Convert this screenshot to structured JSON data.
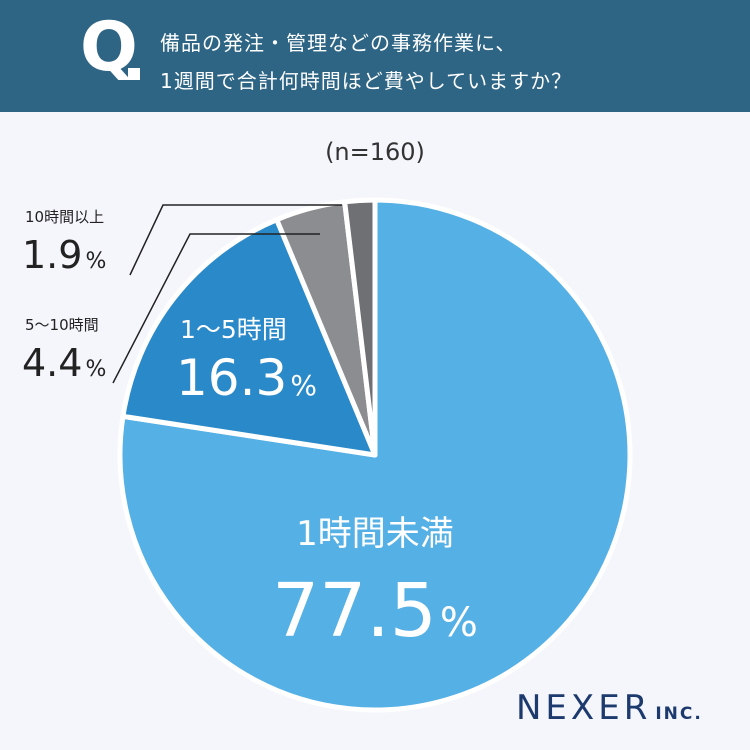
{
  "header": {
    "q_letter": "Q",
    "question_line1": "備品の発注・管理などの事務作業に、",
    "question_line2": "1週間で合計何時間ほど費やしていますか？"
  },
  "sample_size": "(n=160)",
  "footer": {
    "brand": "NEXER",
    "suffix": "INC."
  },
  "colors": {
    "header_bg": "#2e6585",
    "under_1h": "#55b0e6",
    "h1_5": "#2a89c9",
    "h5_10": "#8c8d91",
    "over_10h": "#6f7073",
    "leader_line": "#222222"
  },
  "chart_data": {
    "type": "pie",
    "title": "",
    "start_angle_deg": 0,
    "direction": "clockwise",
    "series": [
      {
        "name": "1時間未満",
        "value": 77.5,
        "value_label": "77.5",
        "unit": "%",
        "color": "#55b0e6",
        "label_position": "inside"
      },
      {
        "name": "1〜5時間",
        "value": 16.3,
        "value_label": "16.3",
        "unit": "%",
        "color": "#2a89c9",
        "label_position": "inside"
      },
      {
        "name": "5〜10時間",
        "value": 4.4,
        "value_label": "4.4",
        "unit": "%",
        "color": "#8c8d91",
        "label_position": "outside-left"
      },
      {
        "name": "10時間以上",
        "value": 1.9,
        "value_label": "1.9",
        "unit": "%",
        "color": "#6f7073",
        "label_position": "outside-left"
      }
    ]
  }
}
